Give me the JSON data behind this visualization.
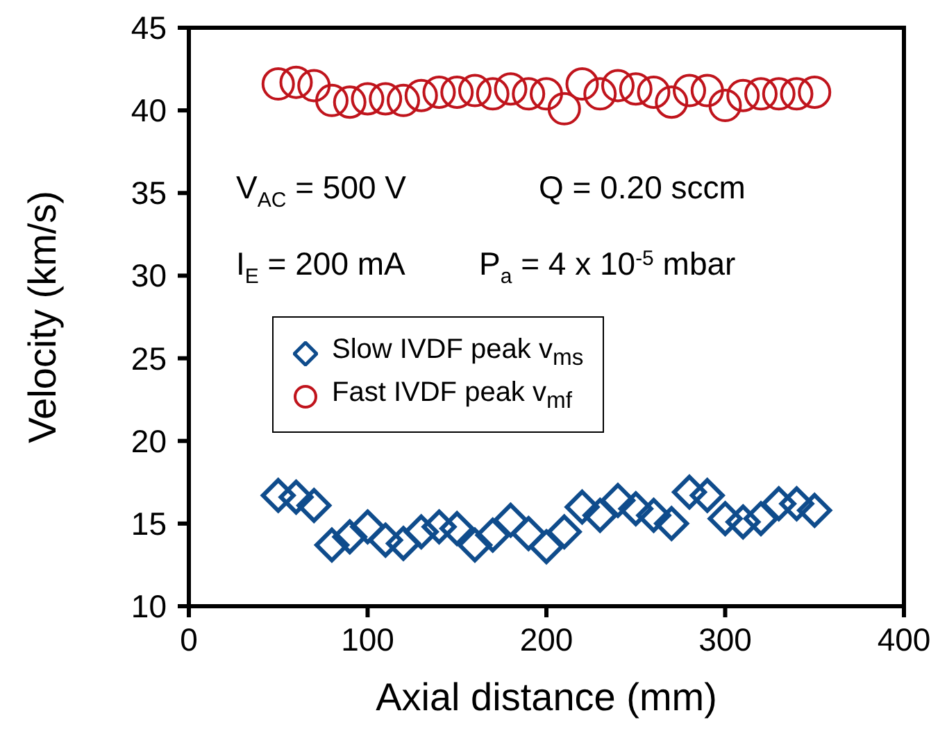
{
  "chart_data": {
    "type": "scatter",
    "xlabel": "Axial distance (mm)",
    "ylabel": "Velocity  (km/s)",
    "x": [
      50,
      60,
      70,
      80,
      90,
      100,
      110,
      120,
      130,
      140,
      150,
      160,
      170,
      180,
      190,
      200,
      210,
      220,
      230,
      240,
      250,
      260,
      270,
      280,
      290,
      300,
      310,
      320,
      330,
      340,
      350
    ],
    "series": [
      {
        "name": "Slow IVDF peak v$_{ms}$",
        "color": "#0f4c8c",
        "marker": "diamond",
        "values": [
          16.7,
          16.6,
          16.1,
          13.7,
          14.2,
          14.8,
          14.0,
          13.8,
          14.5,
          14.8,
          14.7,
          13.7,
          14.3,
          15.2,
          14.4,
          13.6,
          14.5,
          16.0,
          15.5,
          16.4,
          15.9,
          15.5,
          15.0,
          16.9,
          16.7,
          15.3,
          15.1,
          15.3,
          16.2,
          16.2,
          15.8
        ]
      },
      {
        "name": "Fast IVDF peak  v$_{mf}$",
        "color": "#c0141c",
        "marker": "circle",
        "values": [
          41.6,
          41.7,
          41.5,
          40.6,
          40.5,
          40.7,
          40.7,
          40.6,
          40.9,
          41.1,
          41.1,
          41.2,
          41.0,
          41.3,
          41.0,
          41.0,
          40.1,
          41.6,
          41.0,
          41.5,
          41.3,
          41.1,
          40.5,
          41.2,
          41.2,
          40.3,
          40.9,
          41.0,
          41.0,
          41.0,
          41.1
        ]
      }
    ],
    "xlim": [
      0,
      400
    ],
    "xticks": [
      0,
      100,
      200,
      300,
      400
    ],
    "ylim": [
      10,
      45
    ],
    "yticks": [
      10,
      15,
      20,
      25,
      30,
      35,
      40,
      45
    ],
    "annotations": [
      "V$_{AC}$ = 500 V",
      "Q = 0.20 sccm",
      "I$_{E}$ = 200 mA",
      "P$_{a}$ = 4 x 10$^{-5}$ mbar"
    ],
    "legend": "center left",
    "grid": false
  }
}
